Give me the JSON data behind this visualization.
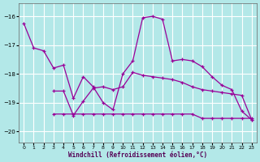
{
  "bg_color": "#b3e8e8",
  "grid_color": "#ffffff",
  "line_color": "#990099",
  "xlabel": "Windchill (Refroidissement éolien,°C)",
  "xlim": [
    -0.5,
    23.5
  ],
  "ylim": [
    -20.4,
    -15.55
  ],
  "yticks": [
    -20,
    -19,
    -18,
    -17,
    -16
  ],
  "xticks": [
    0,
    1,
    2,
    3,
    4,
    5,
    6,
    7,
    8,
    9,
    10,
    11,
    12,
    13,
    14,
    15,
    16,
    17,
    18,
    19,
    20,
    21,
    22,
    23
  ],
  "curve1_x": [
    0,
    1,
    2,
    3,
    4,
    5,
    6,
    7,
    8,
    9,
    10,
    11,
    12,
    13,
    14,
    15,
    16,
    17,
    18,
    19,
    20,
    21,
    22,
    23
  ],
  "curve1_y": [
    -16.25,
    -17.1,
    -17.2,
    -17.8,
    -17.7,
    -18.85,
    -18.1,
    -18.45,
    -19.0,
    -19.25,
    -18.0,
    -17.55,
    -16.05,
    -16.0,
    -16.1,
    -17.55,
    -17.5,
    -17.55,
    -17.75,
    -18.1,
    -18.4,
    -18.55,
    -19.3,
    -19.6
  ],
  "curve2_x": [
    3,
    4,
    5,
    6,
    7,
    8,
    9,
    10,
    11,
    12,
    13,
    14,
    15,
    16,
    17,
    18,
    19,
    20,
    21,
    22,
    23
  ],
  "curve2_y": [
    -18.6,
    -18.6,
    -19.45,
    -18.95,
    -18.5,
    -18.45,
    -18.55,
    -18.45,
    -17.95,
    -18.05,
    -18.1,
    -18.15,
    -18.2,
    -18.3,
    -18.45,
    -18.55,
    -18.6,
    -18.65,
    -18.7,
    -18.75,
    -19.6
  ],
  "curve3_x": [
    3,
    4,
    5,
    6,
    7,
    8,
    9,
    10,
    11,
    12,
    13,
    14,
    15,
    16,
    17,
    18,
    19,
    20,
    21,
    22,
    23
  ],
  "curve3_y": [
    -19.4,
    -19.4,
    -19.4,
    -19.4,
    -19.4,
    -19.4,
    -19.4,
    -19.4,
    -19.4,
    -19.4,
    -19.4,
    -19.4,
    -19.4,
    -19.4,
    -19.4,
    -19.55,
    -19.55,
    -19.55,
    -19.55,
    -19.55,
    -19.55
  ]
}
